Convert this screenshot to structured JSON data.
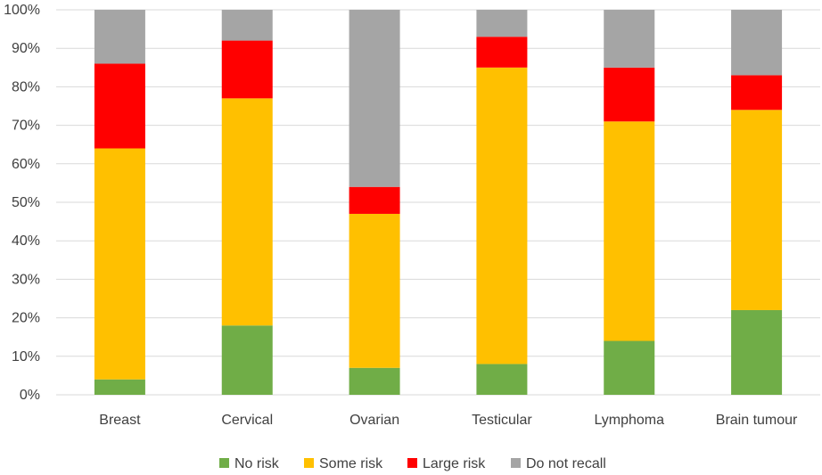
{
  "chart_data": {
    "type": "bar",
    "stacked": true,
    "title": "",
    "xlabel": "",
    "ylabel": "",
    "ylim": [
      0,
      100
    ],
    "yticks": [
      0,
      10,
      20,
      30,
      40,
      50,
      60,
      70,
      80,
      90,
      100
    ],
    "ytick_labels": [
      "0%",
      "10%",
      "20%",
      "30%",
      "40%",
      "50%",
      "60%",
      "70%",
      "80%",
      "90%",
      "100%"
    ],
    "grid": true,
    "legend_position": "bottom",
    "categories": [
      "Breast",
      "Cervical",
      "Ovarian",
      "Testicular",
      "Lymphoma",
      "Brain tumour"
    ],
    "series": [
      {
        "name": "No risk",
        "color": "#70AD47",
        "values": [
          4,
          18,
          7,
          8,
          14,
          22
        ]
      },
      {
        "name": "Some risk",
        "color": "#FFC000",
        "values": [
          60,
          59,
          40,
          77,
          57,
          52
        ]
      },
      {
        "name": "Large risk",
        "color": "#FF0000",
        "values": [
          22,
          15,
          7,
          8,
          14,
          9
        ]
      },
      {
        "name": "Do not recall",
        "color": "#A5A5A5",
        "values": [
          14,
          8,
          46,
          7,
          15,
          17
        ]
      }
    ]
  }
}
